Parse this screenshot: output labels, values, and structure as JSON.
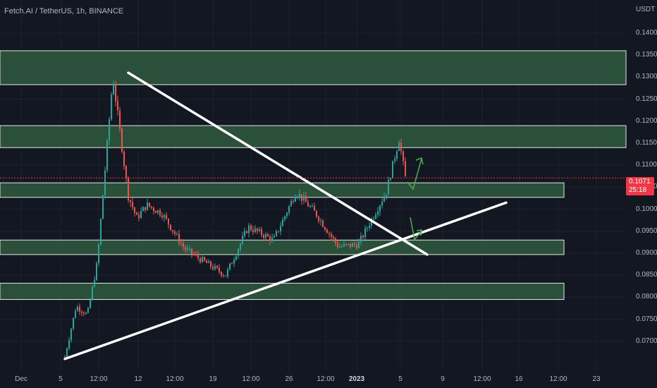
{
  "header": {
    "title": "Fetch.AI / TetherUS, 1h, BINANCE",
    "currency": "USDT"
  },
  "price_tag": {
    "price": "0.1071",
    "countdown": "25:18"
  },
  "colors": {
    "background": "#131722",
    "zone_fill": "#2f5a3e",
    "zone_stroke": "#e6e6e6",
    "trendline": "#ffffff",
    "arrow": "#4caf50",
    "up_candle": "#26a69a",
    "down_candle": "#ef5350",
    "price_tag": "#f23645"
  },
  "chart_data": {
    "type": "candlestick",
    "symbol": "Fetch.AI / TetherUS",
    "interval": "1h",
    "exchange": "BINANCE",
    "y_axis": {
      "ticks": [
        "0.1400",
        "0.1350",
        "0.1300",
        "0.1250",
        "0.1200",
        "0.1150",
        "0.1100",
        "0.1050",
        "0.1000",
        "0.0950",
        "0.0900",
        "0.0850",
        "0.0800",
        "0.0750",
        "0.0700"
      ],
      "range": [
        0.066,
        0.143
      ]
    },
    "x_axis": {
      "ticks": [
        "Dec",
        "5",
        "12:00",
        "12",
        "12:00",
        "19",
        "12:00",
        "26",
        "12:00",
        "2023",
        "5",
        "9",
        "12:00",
        "16",
        "12:00",
        "23"
      ]
    },
    "last_price": 0.1071,
    "price_path": [
      {
        "t": "5",
        "price": 0.0665
      },
      {
        "t": "6",
        "price": 0.078
      },
      {
        "t": "7",
        "price": 0.076
      },
      {
        "t": "8",
        "price": 0.088
      },
      {
        "t": "9",
        "price": 0.13
      },
      {
        "t": "10",
        "price": 0.103
      },
      {
        "t": "11",
        "price": 0.098
      },
      {
        "t": "12",
        "price": 0.101
      },
      {
        "t": "14",
        "price": 0.099
      },
      {
        "t": "16",
        "price": 0.091
      },
      {
        "t": "18",
        "price": 0.087
      },
      {
        "t": "19",
        "price": 0.085
      },
      {
        "t": "21",
        "price": 0.096
      },
      {
        "t": "23",
        "price": 0.093
      },
      {
        "t": "26",
        "price": 0.104
      },
      {
        "t": "28",
        "price": 0.099
      },
      {
        "t": "30",
        "price": 0.0915
      },
      {
        "t": "Jan 2",
        "price": 0.092
      },
      {
        "t": "Jan 4",
        "price": 0.104
      },
      {
        "t": "Jan 5",
        "price": 0.116
      },
      {
        "t": "Jan 5 late",
        "price": 0.1071
      }
    ],
    "zones": [
      {
        "top": 0.136,
        "bottom": 0.1283
      },
      {
        "top": 0.119,
        "bottom": 0.114
      },
      {
        "top": 0.106,
        "bottom": 0.1027
      },
      {
        "top": 0.093,
        "bottom": 0.0897
      },
      {
        "top": 0.0832,
        "bottom": 0.0795
      }
    ],
    "trendlines": [
      {
        "from": {
          "t": "10",
          "price": 0.131
        },
        "to": {
          "t": "Jan 7",
          "price": 0.0897
        }
      },
      {
        "from": {
          "t": "5",
          "price": 0.066
        },
        "to": {
          "t": "Jan 13",
          "price": 0.1015
        }
      }
    ]
  }
}
